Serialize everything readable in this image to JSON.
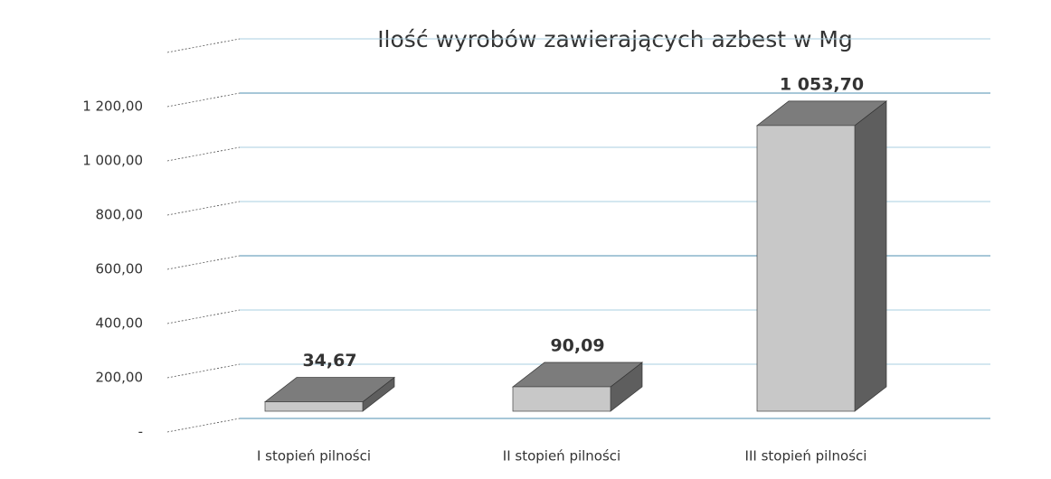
{
  "chart_data": {
    "type": "bar3d",
    "title": "Ilość wyrobów zawierających azbest w Mg",
    "categories": [
      "I stopień pilności",
      "II stopień pilności",
      "III stopień pilności"
    ],
    "values": [
      34.67,
      90.09,
      1053.7
    ],
    "value_labels": [
      "34,67",
      "90,09",
      "1 053,70"
    ],
    "color": "#c8c8c8",
    "ylim": [
      0,
      1400
    ],
    "yticks": [
      {
        "value": 0,
        "label": "-"
      },
      {
        "value": 200,
        "label": "200,00"
      },
      {
        "value": 400,
        "label": "400,00"
      },
      {
        "value": 600,
        "label": "600,00"
      },
      {
        "value": 800,
        "label": "800,00"
      },
      {
        "value": 1000,
        "label": "1 000,00"
      },
      {
        "value": 1200,
        "label": "1 200,00"
      }
    ],
    "grid": true
  }
}
